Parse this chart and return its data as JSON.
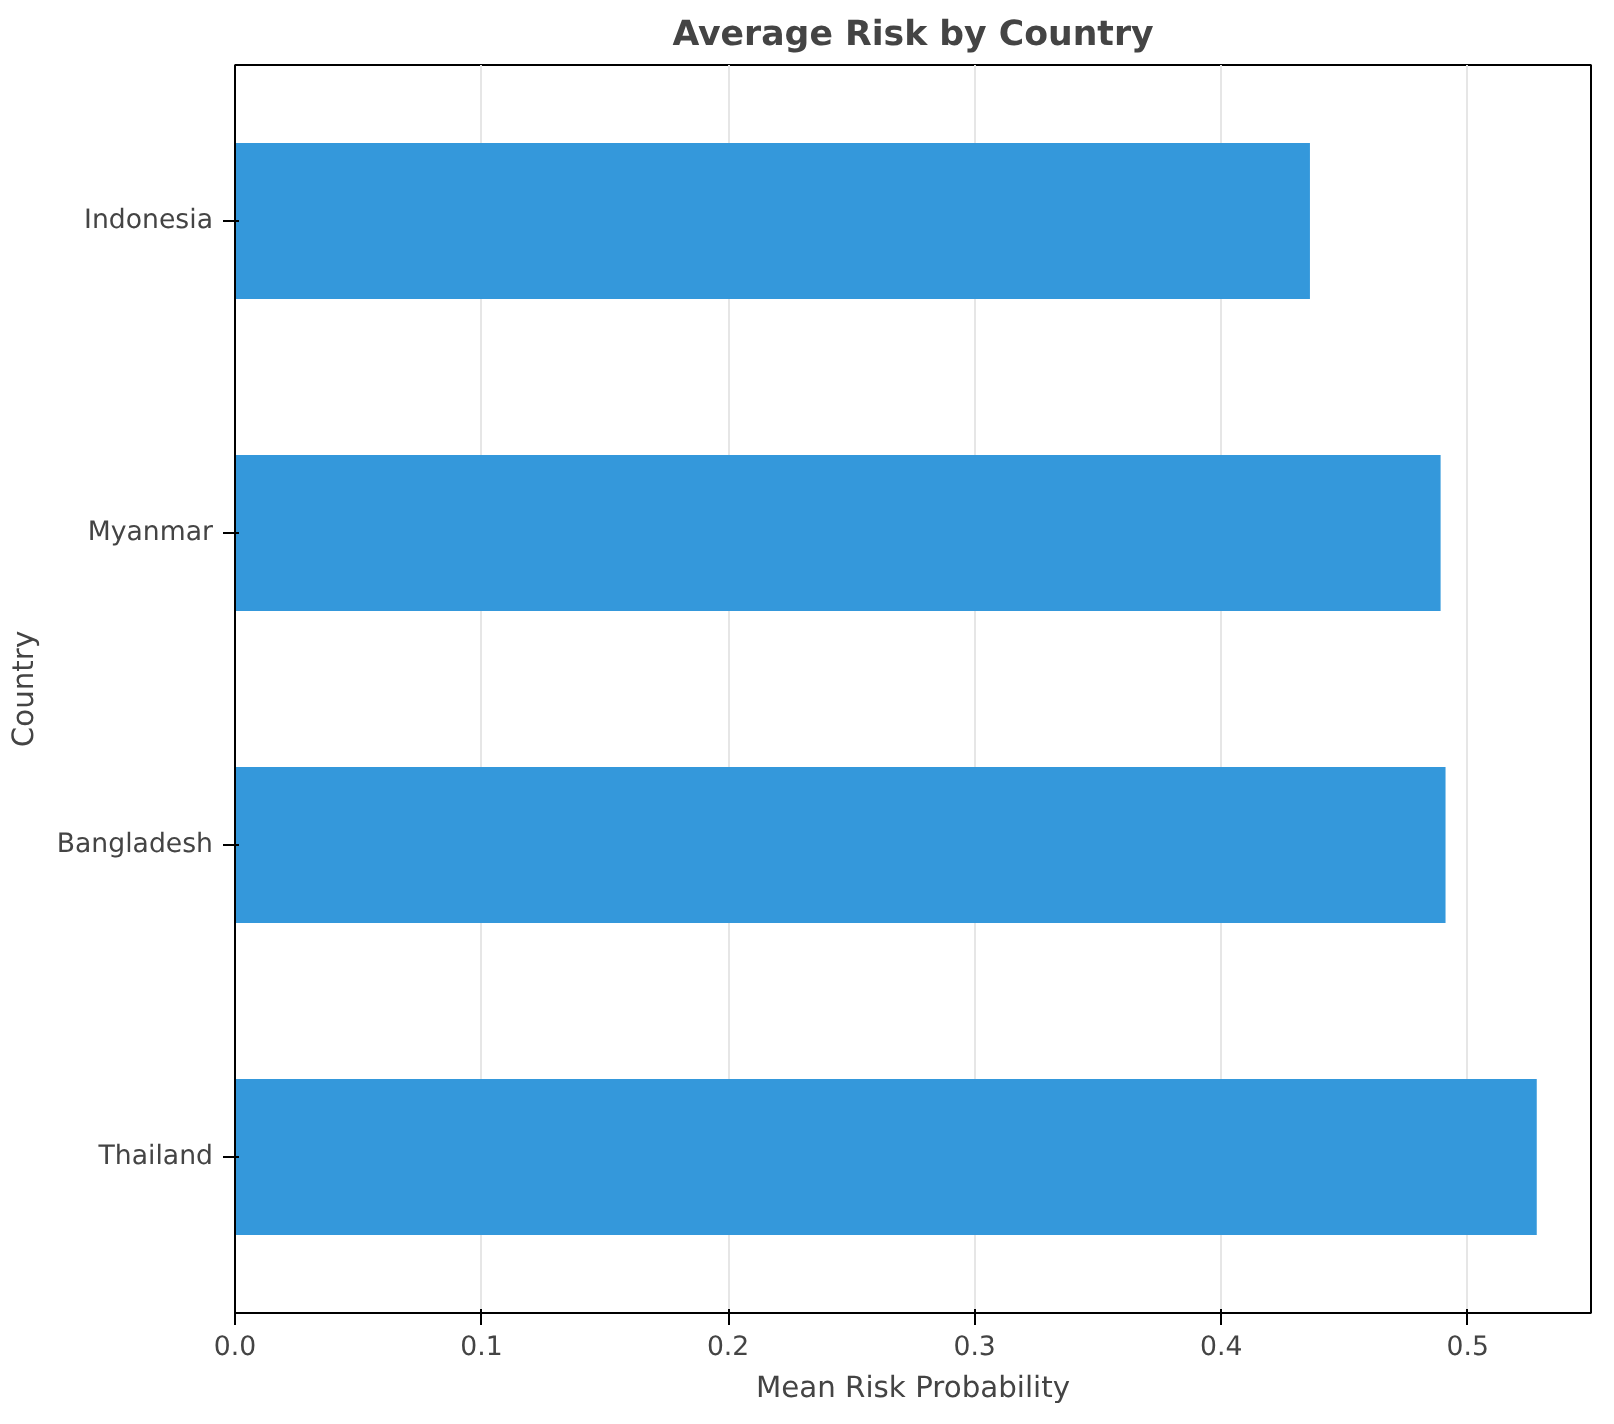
{
  "chart_data": {
    "type": "bar",
    "orientation": "horizontal",
    "title": "Average Risk by Country",
    "xlabel": "Mean Risk Probability",
    "ylabel": "Country",
    "categories": [
      "Indonesia",
      "Myanmar",
      "Bangladesh",
      "Thailand"
    ],
    "values": [
      0.436,
      0.489,
      0.491,
      0.528
    ],
    "color": "#3498db",
    "xlim": [
      0,
      0.55
    ],
    "xticks": [
      {
        "value": 0,
        "label": "0.0"
      },
      0.1,
      0.2,
      0.3,
      0.4,
      0.5
    ],
    "grid": "x"
  }
}
